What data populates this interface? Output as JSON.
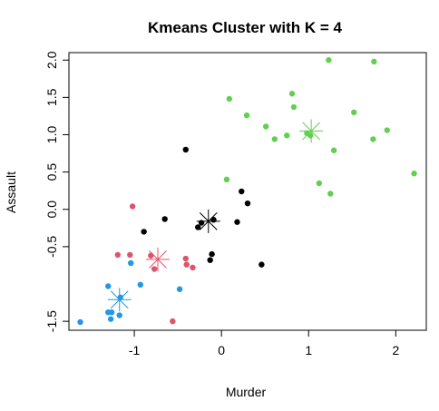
{
  "chart_data": {
    "type": "scatter",
    "title": "Kmeans Cluster with K = 4",
    "xlabel": "Murder",
    "ylabel": "Assault",
    "xlim": [
      -1.75,
      2.35
    ],
    "ylim": [
      -1.62,
      2.1
    ],
    "x_ticks": [
      -1,
      0,
      1,
      2
    ],
    "x_tick_labels": [
      "-1",
      "0",
      "1",
      "2"
    ],
    "y_ticks": [
      -1.5,
      -0.5,
      0.0,
      0.5,
      1.0,
      1.5,
      2.0
    ],
    "y_tick_labels": [
      "-1.5",
      "-0.5",
      "0.0",
      "0.5",
      "1.0",
      "1.5",
      "2.0"
    ],
    "grid": false,
    "series": [
      {
        "color": "#000000",
        "points": [
          [
            -0.41,
            0.8
          ],
          [
            0.23,
            0.24
          ],
          [
            0.3,
            0.08
          ],
          [
            -0.89,
            -0.3
          ],
          [
            -0.65,
            -0.13
          ],
          [
            -0.27,
            -0.24
          ],
          [
            -0.23,
            -0.18
          ],
          [
            -0.09,
            -0.14
          ],
          [
            0.18,
            -0.17
          ],
          [
            -0.11,
            -0.6
          ],
          [
            -0.13,
            -0.68
          ],
          [
            0.46,
            -0.74
          ]
        ],
        "center": [
          -0.15,
          -0.16
        ]
      },
      {
        "color": "#DF536B",
        "points": [
          [
            -1.02,
            0.04
          ],
          [
            -1.19,
            -0.61
          ],
          [
            -1.05,
            -0.61
          ],
          [
            -0.81,
            -0.62
          ],
          [
            -0.41,
            -0.66
          ],
          [
            -0.4,
            -0.74
          ],
          [
            -0.33,
            -0.78
          ],
          [
            -0.77,
            -0.8
          ],
          [
            -0.56,
            -1.5
          ]
        ],
        "center": [
          -0.73,
          -0.67
        ]
      },
      {
        "color": "#2297E6",
        "points": [
          [
            -1.04,
            -0.72
          ],
          [
            -0.93,
            -1.01
          ],
          [
            -1.3,
            -1.03
          ],
          [
            -0.48,
            -1.07
          ],
          [
            -1.16,
            -1.18
          ],
          [
            -1.3,
            -1.38
          ],
          [
            -1.26,
            -1.38
          ],
          [
            -1.17,
            -1.42
          ],
          [
            -1.27,
            -1.47
          ],
          [
            -1.62,
            -1.51
          ]
        ],
        "center": [
          -1.17,
          -1.21
        ]
      },
      {
        "color": "#61D04F",
        "points": [
          [
            1.23,
            2.0
          ],
          [
            1.75,
            1.98
          ],
          [
            0.81,
            1.55
          ],
          [
            0.09,
            1.48
          ],
          [
            0.83,
            1.37
          ],
          [
            1.52,
            1.3
          ],
          [
            0.29,
            1.26
          ],
          [
            0.51,
            1.11
          ],
          [
            1.9,
            1.06
          ],
          [
            0.98,
            1.02
          ],
          [
            1.02,
            0.99
          ],
          [
            0.75,
            0.99
          ],
          [
            0.61,
            0.94
          ],
          [
            1.74,
            0.94
          ],
          [
            1.29,
            0.79
          ],
          [
            0.06,
            0.4
          ],
          [
            1.12,
            0.35
          ],
          [
            1.25,
            0.21
          ],
          [
            2.21,
            0.48
          ]
        ],
        "center": [
          1.03,
          1.05
        ]
      }
    ]
  }
}
